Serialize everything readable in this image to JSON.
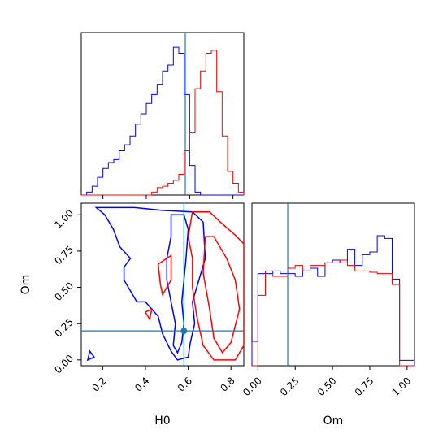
{
  "chart_data": {
    "type": "corner",
    "parameters": [
      "H0",
      "Om"
    ],
    "truth": {
      "H0": 0.58,
      "Om": 0.2
    },
    "truth_color": "#1f77b4",
    "series": [
      {
        "color": "#0000ff"
      },
      {
        "color": "#ff0000"
      }
    ],
    "panels": [
      {
        "id": "hist-H0",
        "type": "histogram-step",
        "x_range": [
          0.1,
          0.85
        ],
        "y_range": [
          0,
          1.1
        ],
        "bin_edges": [
          0.1,
          0.125,
          0.15,
          0.175,
          0.2,
          0.225,
          0.25,
          0.275,
          0.3,
          0.325,
          0.35,
          0.375,
          0.4,
          0.425,
          0.45,
          0.475,
          0.5,
          0.525,
          0.55,
          0.575,
          0.6,
          0.625,
          0.65,
          0.675,
          0.7,
          0.725,
          0.75,
          0.775,
          0.8,
          0.825,
          0.85
        ],
        "counts": [
          [
            0,
            0.02,
            0.06,
            0.12,
            0.18,
            0.22,
            0.24,
            0.3,
            0.34,
            0.4,
            0.48,
            0.55,
            0.62,
            0.68,
            0.75,
            0.84,
            0.88,
            1.0,
            0.96,
            0.68,
            0.2,
            0.02,
            0,
            0,
            0,
            0,
            0,
            0,
            0,
            0
          ],
          [
            0,
            0,
            0,
            0,
            0,
            0,
            0,
            0,
            0,
            0,
            0,
            0,
            0,
            0.02,
            0.05,
            0.06,
            0.08,
            0.1,
            0.14,
            0.3,
            0.42,
            0.72,
            0.84,
            0.96,
            0.98,
            0.7,
            0.4,
            0.16,
            0.08,
            0.02
          ]
        ]
      },
      {
        "id": "hist-Om",
        "type": "histogram-step",
        "x_range": [
          -0.04,
          1.05
        ],
        "y_range": [
          0,
          1.2
        ],
        "bin_edges": [
          -0.04,
          0.0,
          0.05,
          0.1,
          0.15,
          0.2,
          0.25,
          0.3,
          0.35,
          0.4,
          0.45,
          0.5,
          0.55,
          0.6,
          0.65,
          0.7,
          0.75,
          0.8,
          0.85,
          0.9,
          0.95,
          1.0,
          1.05
        ],
        "counts": [
          [
            0.18,
            0.68,
            0.68,
            0.7,
            0.68,
            0.68,
            0.66,
            0.7,
            0.72,
            0.66,
            0.76,
            0.78,
            0.76,
            0.86,
            0.74,
            0.82,
            0.84,
            0.96,
            0.94,
            0.64,
            0.04,
            0.04
          ],
          [
            0,
            0.52,
            0.7,
            0.66,
            0.66,
            0.72,
            0.74,
            0.7,
            0.74,
            0.74,
            0.76,
            0.76,
            0.78,
            0.74,
            0.7,
            0.7,
            0.69,
            0.68,
            0.68,
            0.6,
            0,
            0
          ]
        ]
      },
      {
        "id": "contour-H0-Om",
        "type": "contour",
        "x_range": [
          0.1,
          0.86
        ],
        "y_range": [
          -0.04,
          1.08
        ],
        "x_ticks": [
          0.2,
          0.4,
          0.6,
          0.8
        ],
        "y_ticks": [
          0.0,
          0.25,
          0.5,
          0.75,
          1.0
        ],
        "blue_contours": [
          [
            [
              0.17,
              1.05
            ],
            [
              0.35,
              1.05
            ],
            [
              0.48,
              1.03
            ],
            [
              0.62,
              1.02
            ],
            [
              0.67,
              0.95
            ],
            [
              0.68,
              0.7
            ],
            [
              0.65,
              0.55
            ],
            [
              0.62,
              0.4
            ],
            [
              0.63,
              0.25
            ],
            [
              0.61,
              0.12
            ],
            [
              0.6,
              0.02
            ],
            [
              0.55,
              0.0
            ],
            [
              0.52,
              0.06
            ],
            [
              0.48,
              0.18
            ],
            [
              0.46,
              0.3
            ],
            [
              0.4,
              0.4
            ],
            [
              0.36,
              0.4
            ],
            [
              0.34,
              0.45
            ],
            [
              0.3,
              0.55
            ],
            [
              0.3,
              0.64
            ],
            [
              0.33,
              0.7
            ],
            [
              0.28,
              0.78
            ],
            [
              0.25,
              0.9
            ],
            [
              0.21,
              1.0
            ],
            [
              0.17,
              1.05
            ]
          ],
          [
            [
              0.14,
              0.06
            ],
            [
              0.16,
              0.02
            ],
            [
              0.13,
              0.0
            ],
            [
              0.14,
              0.06
            ]
          ],
          [
            [
              0.52,
              1.0
            ],
            [
              0.58,
              1.0
            ],
            [
              0.6,
              0.9
            ],
            [
              0.59,
              0.7
            ],
            [
              0.58,
              0.55
            ],
            [
              0.57,
              0.4
            ],
            [
              0.58,
              0.25
            ],
            [
              0.57,
              0.12
            ],
            [
              0.55,
              0.05
            ],
            [
              0.53,
              0.1
            ],
            [
              0.54,
              0.25
            ],
            [
              0.52,
              0.4
            ],
            [
              0.5,
              0.55
            ],
            [
              0.5,
              0.7
            ],
            [
              0.52,
              0.85
            ],
            [
              0.52,
              1.0
            ]
          ]
        ],
        "red_contours": [
          [
            [
              0.62,
              1.02
            ],
            [
              0.7,
              1.02
            ],
            [
              0.75,
              0.95
            ],
            [
              0.82,
              0.86
            ],
            [
              0.86,
              0.8
            ],
            [
              0.86,
              0.1
            ],
            [
              0.82,
              0.0
            ],
            [
              0.72,
              0.0
            ],
            [
              0.67,
              0.1
            ],
            [
              0.64,
              0.3
            ],
            [
              0.62,
              0.5
            ],
            [
              0.62,
              0.7
            ],
            [
              0.6,
              0.85
            ],
            [
              0.62,
              1.02
            ]
          ],
          [
            [
              0.68,
              0.85
            ],
            [
              0.72,
              0.85
            ],
            [
              0.78,
              0.7
            ],
            [
              0.82,
              0.55
            ],
            [
              0.84,
              0.35
            ],
            [
              0.8,
              0.12
            ],
            [
              0.76,
              0.05
            ],
            [
              0.72,
              0.15
            ],
            [
              0.7,
              0.35
            ],
            [
              0.67,
              0.6
            ],
            [
              0.68,
              0.85
            ]
          ],
          [
            [
              0.46,
              0.66
            ],
            [
              0.52,
              0.72
            ],
            [
              0.52,
              0.55
            ],
            [
              0.48,
              0.45
            ],
            [
              0.47,
              0.52
            ],
            [
              0.46,
              0.66
            ]
          ],
          [
            [
              0.4,
              0.33
            ],
            [
              0.43,
              0.35
            ],
            [
              0.42,
              0.28
            ],
            [
              0.4,
              0.33
            ]
          ]
        ]
      }
    ],
    "xlabel": "H0",
    "ylabel": "Om",
    "om_xlabel": "Om",
    "om_x_ticks": [
      0.0,
      0.25,
      0.5,
      0.75,
      1.0
    ],
    "tick_labels": {
      "h0": [
        "0.2",
        "0.4",
        "0.6",
        "0.8"
      ],
      "om": [
        "0.00",
        "0.25",
        "0.50",
        "0.75",
        "1.00"
      ]
    }
  }
}
